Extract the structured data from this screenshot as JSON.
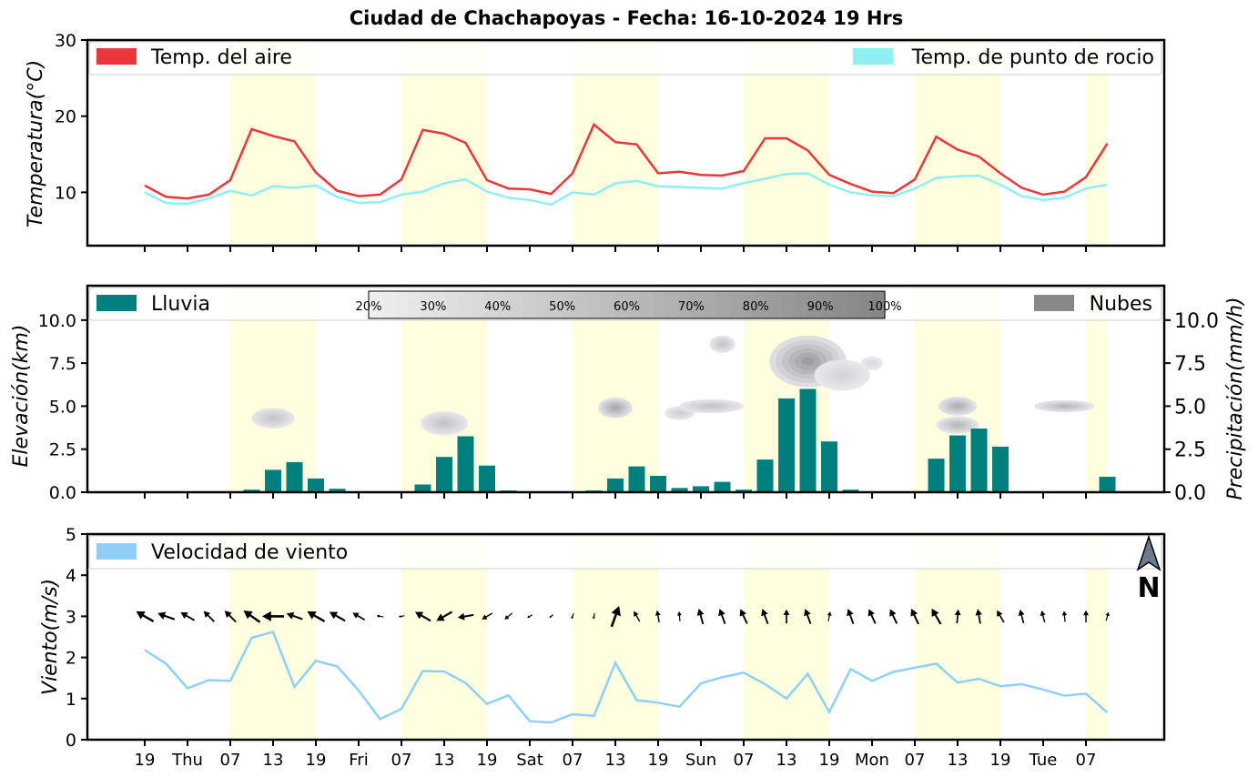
{
  "title": "Ciudad de Chachapoyas   -   Fecha: 16-10-2024 19 Hrs",
  "colors": {
    "air": "#e8383b",
    "dew": "#8ef0f0",
    "rain": "#007f7f",
    "cloud": "#888888",
    "wind": "#90d0f8",
    "day_band": "#ffffe0"
  },
  "x_tick_labels": [
    "19",
    "Thu",
    "07",
    "13",
    "19",
    "Fri",
    "07",
    "13",
    "19",
    "Sat",
    "07",
    "13",
    "19",
    "Sun",
    "07",
    "13",
    "19",
    "Mon",
    "07",
    "13",
    "19",
    "Tue",
    "07"
  ],
  "chart_data": [
    {
      "type": "line",
      "name": "temperatura",
      "ylabel": "Temperatura(°C)",
      "ylim": [
        3,
        30
      ],
      "yticks": [
        10,
        20,
        30
      ],
      "legend": [
        "Temp. del aire",
        "Temp. de punto de rocio"
      ],
      "series": [
        {
          "name": "Temp. del aire",
          "values": [
            10.9,
            9.4,
            9.2,
            9.7,
            11.6,
            18.3,
            17.4,
            16.7,
            12.6,
            10.2,
            9.5,
            9.7,
            11.7,
            18.2,
            17.7,
            16.5,
            11.6,
            10.5,
            10.4,
            9.8,
            12.5,
            18.9,
            16.6,
            16.3,
            12.5,
            12.7,
            12.3,
            12.2,
            12.8,
            17.1,
            17.1,
            15.5,
            12.3,
            11.1,
            10.1,
            9.9,
            11.7,
            17.3,
            15.6,
            14.7,
            12.5,
            10.6,
            9.7,
            10.1,
            12.0,
            16.4
          ]
        },
        {
          "name": "Temp. de punto de rocio",
          "values": [
            10.0,
            8.6,
            8.5,
            9.2,
            10.2,
            9.6,
            10.8,
            10.6,
            10.9,
            9.4,
            8.6,
            8.7,
            9.7,
            10.1,
            11.2,
            11.7,
            10.1,
            9.3,
            9.0,
            8.4,
            10.0,
            9.7,
            11.2,
            11.5,
            10.8,
            10.7,
            10.6,
            10.5,
            11.2,
            11.8,
            12.4,
            12.5,
            11.0,
            10.0,
            9.6,
            9.5,
            10.5,
            11.9,
            12.1,
            12.2,
            11.0,
            9.5,
            9.0,
            9.3,
            10.5,
            11.0
          ]
        }
      ]
    },
    {
      "type": "bar",
      "name": "lluvia-nubes",
      "ylabel": "Elevación(km)",
      "ylabel_right": "Precipitación(mm/h)",
      "ylim": [
        0,
        12
      ],
      "yticks": [
        "0.0",
        "2.5",
        "5.0",
        "7.5",
        "10.0"
      ],
      "legend": [
        "Lluvia",
        "Nubes"
      ],
      "colorbar_labels": [
        "20%",
        "30%",
        "40%",
        "50%",
        "60%",
        "70%",
        "80%",
        "90%",
        "100%"
      ],
      "rain_values": [
        0,
        0,
        0,
        0.05,
        0.05,
        0.15,
        1.3,
        1.75,
        0.8,
        0.2,
        0.05,
        0.05,
        0.05,
        0.45,
        2.05,
        3.25,
        1.55,
        0.1,
        0,
        0,
        0.05,
        0.1,
        0.8,
        1.5,
        0.95,
        0.25,
        0.35,
        0.6,
        0.15,
        1.9,
        5.45,
        6.0,
        2.95,
        0.15,
        0,
        0.05,
        0.05,
        1.95,
        3.3,
        3.7,
        2.65,
        0,
        0,
        0,
        0.05,
        0.9
      ],
      "clouds": [
        {
          "hour": 6,
          "elev": 4.3,
          "rx": 1.0,
          "ry": 0.6,
          "density": 0.35
        },
        {
          "hour": 14,
          "elev": 4.0,
          "rx": 1.1,
          "ry": 0.7,
          "density": 0.35
        },
        {
          "hour": 22,
          "elev": 4.9,
          "rx": 0.8,
          "ry": 0.6,
          "density": 0.6
        },
        {
          "hour": 25,
          "elev": 4.6,
          "rx": 0.7,
          "ry": 0.4,
          "density": 0.25
        },
        {
          "hour": 26.5,
          "elev": 5.0,
          "rx": 1.5,
          "ry": 0.4,
          "density": 0.35
        },
        {
          "hour": 27,
          "elev": 8.6,
          "rx": 0.6,
          "ry": 0.5,
          "density": 0.35
        },
        {
          "hour": 31,
          "elev": 7.6,
          "rx": 1.8,
          "ry": 1.5,
          "density": 0.7
        },
        {
          "hour": 32.6,
          "elev": 6.8,
          "rx": 1.3,
          "ry": 0.9,
          "density": 0.2
        },
        {
          "hour": 34,
          "elev": 7.5,
          "rx": 0.5,
          "ry": 0.4,
          "density": 0.15
        },
        {
          "hour": 38,
          "elev": 5.0,
          "rx": 0.9,
          "ry": 0.55,
          "density": 0.55
        },
        {
          "hour": 38,
          "elev": 3.9,
          "rx": 1.0,
          "ry": 0.5,
          "density": 0.45
        },
        {
          "hour": 43,
          "elev": 5.0,
          "rx": 1.4,
          "ry": 0.35,
          "density": 0.45
        }
      ]
    },
    {
      "type": "line",
      "name": "viento",
      "ylabel": "Viento(m/s)",
      "ylim": [
        0,
        5
      ],
      "yticks": [
        0,
        1,
        2,
        3,
        4,
        5
      ],
      "legend": [
        "Velocidad de viento"
      ],
      "series": [
        {
          "name": "Velocidad de viento",
          "values": [
            2.18,
            1.85,
            1.25,
            1.45,
            1.43,
            2.48,
            2.62,
            1.28,
            1.92,
            1.78,
            1.2,
            0.5,
            0.75,
            1.67,
            1.66,
            1.38,
            0.87,
            1.08,
            0.45,
            0.42,
            0.62,
            0.58,
            1.87,
            0.96,
            0.9,
            0.8,
            1.37,
            1.52,
            1.63,
            1.35,
            1.0,
            1.6,
            0.67,
            1.72,
            1.43,
            1.65,
            1.75,
            1.85,
            1.39,
            1.48,
            1.3,
            1.35,
            1.22,
            1.07,
            1.12,
            0.66
          ]
        }
      ],
      "wind_dir_deg": [
        300,
        290,
        300,
        315,
        315,
        305,
        270,
        290,
        300,
        300,
        300,
        280,
        260,
        300,
        240,
        260,
        240,
        230,
        240,
        230,
        200,
        190,
        20,
        330,
        350,
        355,
        345,
        340,
        335,
        340,
        0,
        340,
        10,
        340,
        335,
        335,
        335,
        330,
        5,
        350,
        330,
        345,
        345,
        355,
        0,
        15
      ],
      "wind_arrow_size": [
        1.0,
        0.9,
        0.8,
        0.75,
        0.8,
        1.0,
        1.1,
        0.85,
        1.0,
        0.9,
        0.7,
        0.35,
        0.3,
        0.9,
        0.9,
        0.8,
        0.6,
        0.5,
        0.3,
        0.25,
        0.3,
        0.3,
        1.1,
        0.6,
        0.6,
        0.5,
        0.8,
        0.8,
        0.8,
        0.8,
        0.7,
        0.8,
        0.5,
        0.8,
        0.8,
        0.8,
        0.85,
        0.9,
        0.7,
        0.75,
        0.7,
        0.7,
        0.6,
        0.55,
        0.6,
        0.45
      ],
      "north_label": "N"
    }
  ]
}
